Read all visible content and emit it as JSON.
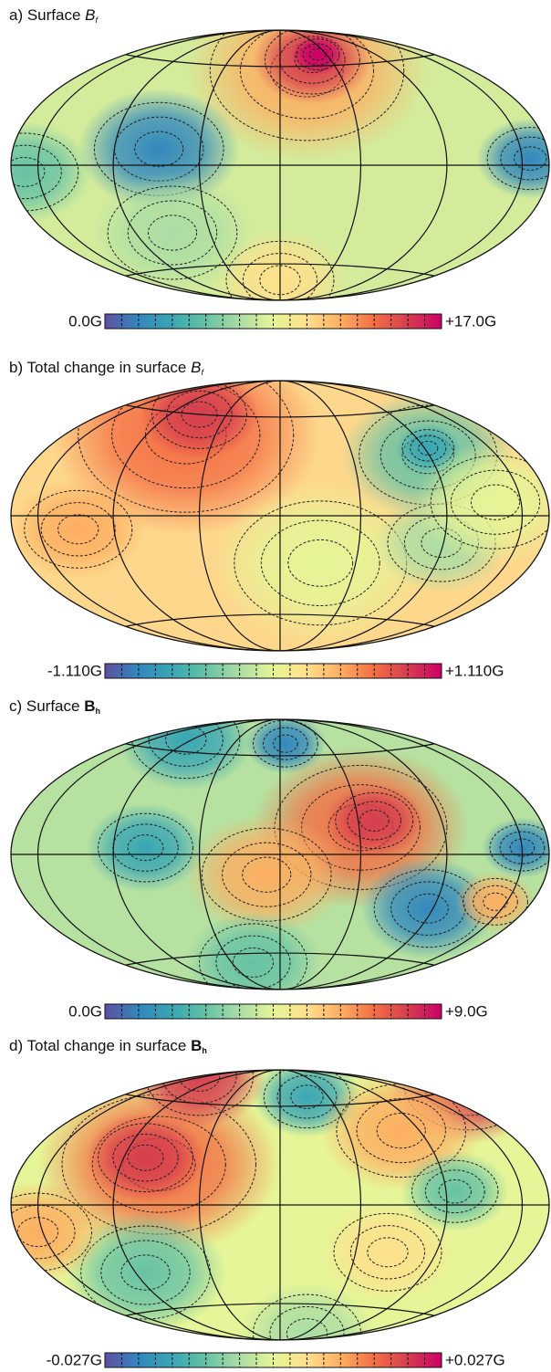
{
  "panels": [
    {
      "prefix": "a) Surface ",
      "symbol": "B",
      "subscript": "f",
      "symbol_style": "italic",
      "colorbar": {
        "min_label": "0.0G",
        "max_label": "+17.0G"
      }
    },
    {
      "prefix": "b) Total change in surface ",
      "symbol": "B",
      "subscript": "f",
      "symbol_style": "italic",
      "colorbar": {
        "min_label": "-1.110G",
        "max_label": "+1.110G"
      }
    },
    {
      "prefix": "c) Surface ",
      "symbol": "B",
      "subscript": "h",
      "symbol_style": "bold",
      "colorbar": {
        "min_label": "0.0G",
        "max_label": "+9.0G"
      }
    },
    {
      "prefix": "d) Total change in surface ",
      "symbol": "B",
      "subscript": "h",
      "symbol_style": "bold",
      "colorbar": {
        "min_label": "-0.027G",
        "max_label": "+0.027G"
      }
    }
  ]
}
